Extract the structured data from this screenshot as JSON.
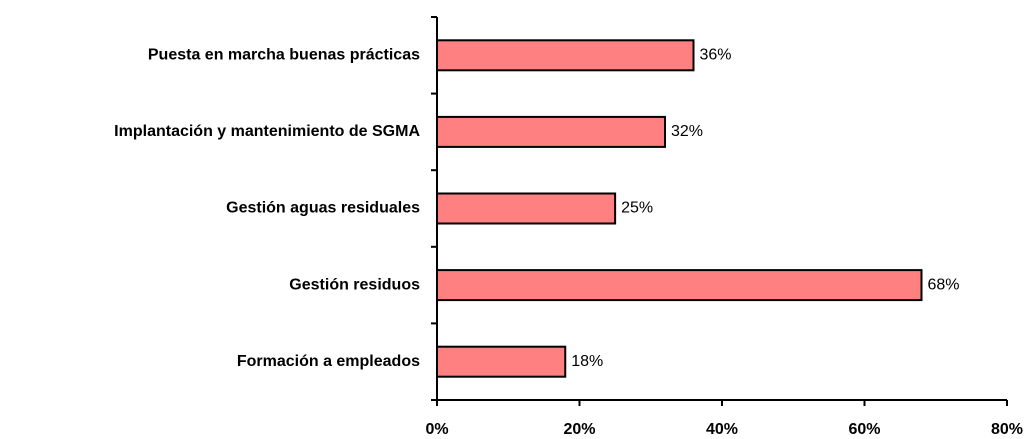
{
  "chart_data": {
    "type": "bar",
    "orientation": "horizontal",
    "categories": [
      "Puesta en marcha buenas prácticas",
      "Implantación y mantenimiento de SGMA",
      "Gestión aguas residuales",
      "Gestión residuos",
      "Formación a empleados"
    ],
    "values": [
      36,
      32,
      25,
      68,
      18
    ],
    "value_labels": [
      "36%",
      "32%",
      "25%",
      "68%",
      "18%"
    ],
    "color": "#ff8080",
    "xlim": [
      0,
      80
    ],
    "xticks": [
      {
        "value": 0,
        "label": "0%"
      },
      {
        "value": 20,
        "label": "20%"
      },
      {
        "value": 40,
        "label": "40%"
      },
      {
        "value": 60,
        "label": "60%"
      },
      {
        "value": 80,
        "label": "80%"
      }
    ],
    "grid": false
  }
}
